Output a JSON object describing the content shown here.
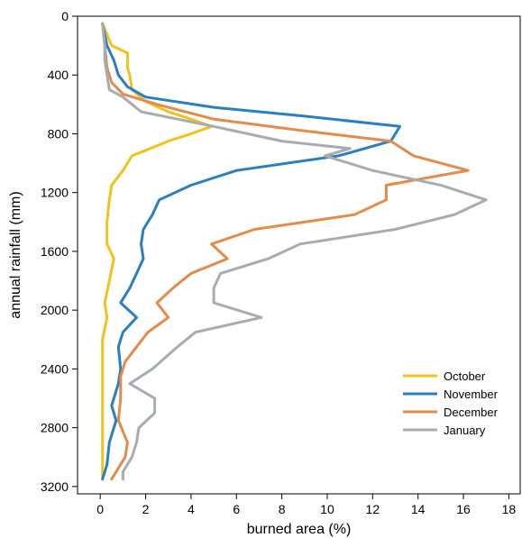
{
  "chart_data": {
    "type": "line",
    "xlabel": "burned area (%)",
    "ylabel": "annual rainfall (mm)",
    "xlim": [
      -1,
      18.5
    ],
    "ylim": [
      3250,
      0
    ],
    "y_inverted": true,
    "xticks": [
      0,
      2,
      4,
      6,
      8,
      10,
      12,
      14,
      16,
      18
    ],
    "yticks": [
      0,
      400,
      800,
      1200,
      1600,
      2000,
      2400,
      2800,
      3200
    ],
    "grid": false,
    "legend_position": "bottom-right",
    "series": [
      {
        "name": "October",
        "color": "#f2c21b",
        "points": [
          [
            0.1,
            50
          ],
          [
            0.5,
            200
          ],
          [
            1.2,
            250
          ],
          [
            1.2,
            350
          ],
          [
            1.3,
            400
          ],
          [
            1.4,
            500
          ],
          [
            2.0,
            580
          ],
          [
            3.0,
            650
          ],
          [
            4.0,
            700
          ],
          [
            4.9,
            750
          ],
          [
            4.0,
            800
          ],
          [
            3.0,
            850
          ],
          [
            2.2,
            900
          ],
          [
            1.4,
            950
          ],
          [
            1.0,
            1050
          ],
          [
            0.5,
            1150
          ],
          [
            0.4,
            1250
          ],
          [
            0.3,
            1400
          ],
          [
            0.3,
            1550
          ],
          [
            0.6,
            1650
          ],
          [
            0.4,
            1800
          ],
          [
            0.2,
            1950
          ],
          [
            0.3,
            2050
          ],
          [
            0.1,
            2200
          ],
          [
            0.1,
            2300
          ],
          [
            0.1,
            2450
          ],
          [
            0.1,
            2600
          ],
          [
            0.1,
            2750
          ],
          [
            0.1,
            2950
          ],
          [
            0.1,
            3150
          ]
        ]
      },
      {
        "name": "November",
        "color": "#2b7fc1",
        "points": [
          [
            0.1,
            50
          ],
          [
            0.3,
            200
          ],
          [
            0.6,
            300
          ],
          [
            0.8,
            400
          ],
          [
            1.2,
            480
          ],
          [
            2.0,
            550
          ],
          [
            5.0,
            620
          ],
          [
            9.0,
            680
          ],
          [
            13.2,
            750
          ],
          [
            12.8,
            850
          ],
          [
            10.5,
            950
          ],
          [
            6.0,
            1050
          ],
          [
            4.0,
            1150
          ],
          [
            2.6,
            1250
          ],
          [
            2.3,
            1350
          ],
          [
            1.9,
            1450
          ],
          [
            1.8,
            1550
          ],
          [
            1.9,
            1650
          ],
          [
            1.6,
            1750
          ],
          [
            1.3,
            1850
          ],
          [
            0.9,
            1950
          ],
          [
            1.6,
            2050
          ],
          [
            1.0,
            2150
          ],
          [
            0.8,
            2250
          ],
          [
            0.9,
            2400
          ],
          [
            0.8,
            2500
          ],
          [
            0.5,
            2650
          ],
          [
            0.7,
            2750
          ],
          [
            0.4,
            2900
          ],
          [
            0.3,
            3050
          ],
          [
            0.1,
            3150
          ]
        ]
      },
      {
        "name": "December",
        "color": "#e48a4a",
        "points": [
          [
            0.1,
            50
          ],
          [
            0.2,
            200
          ],
          [
            0.3,
            350
          ],
          [
            0.5,
            450
          ],
          [
            1.0,
            530
          ],
          [
            2.5,
            600
          ],
          [
            5.0,
            700
          ],
          [
            9.0,
            780
          ],
          [
            12.8,
            850
          ],
          [
            13.8,
            950
          ],
          [
            16.2,
            1050
          ],
          [
            12.6,
            1150
          ],
          [
            12.6,
            1250
          ],
          [
            11.2,
            1350
          ],
          [
            6.8,
            1450
          ],
          [
            4.9,
            1550
          ],
          [
            5.6,
            1650
          ],
          [
            4.0,
            1750
          ],
          [
            3.2,
            1850
          ],
          [
            2.5,
            1950
          ],
          [
            3.0,
            2050
          ],
          [
            2.1,
            2150
          ],
          [
            1.6,
            2250
          ],
          [
            1.1,
            2350
          ],
          [
            0.9,
            2450
          ],
          [
            0.9,
            2600
          ],
          [
            0.8,
            2750
          ],
          [
            1.2,
            2900
          ],
          [
            1.1,
            3000
          ],
          [
            0.5,
            3150
          ]
        ]
      },
      {
        "name": "January",
        "color": "#a8abb0",
        "points": [
          [
            0.1,
            50
          ],
          [
            0.2,
            200
          ],
          [
            0.2,
            300
          ],
          [
            0.3,
            400
          ],
          [
            0.4,
            500
          ],
          [
            1.0,
            550
          ],
          [
            1.8,
            650
          ],
          [
            5.0,
            750
          ],
          [
            8.0,
            850
          ],
          [
            11.0,
            900
          ],
          [
            9.9,
            950
          ],
          [
            12.0,
            1050
          ],
          [
            15.0,
            1150
          ],
          [
            17.0,
            1250
          ],
          [
            15.6,
            1350
          ],
          [
            13.0,
            1450
          ],
          [
            8.8,
            1550
          ],
          [
            7.4,
            1650
          ],
          [
            5.3,
            1750
          ],
          [
            5.0,
            1850
          ],
          [
            5.0,
            1950
          ],
          [
            7.1,
            2050
          ],
          [
            4.2,
            2150
          ],
          [
            3.4,
            2250
          ],
          [
            2.3,
            2400
          ],
          [
            1.3,
            2500
          ],
          [
            2.4,
            2600
          ],
          [
            2.4,
            2700
          ],
          [
            1.7,
            2800
          ],
          [
            1.6,
            2900
          ],
          [
            1.4,
            3000
          ],
          [
            1.0,
            3100
          ],
          [
            1.0,
            3150
          ]
        ]
      }
    ]
  }
}
